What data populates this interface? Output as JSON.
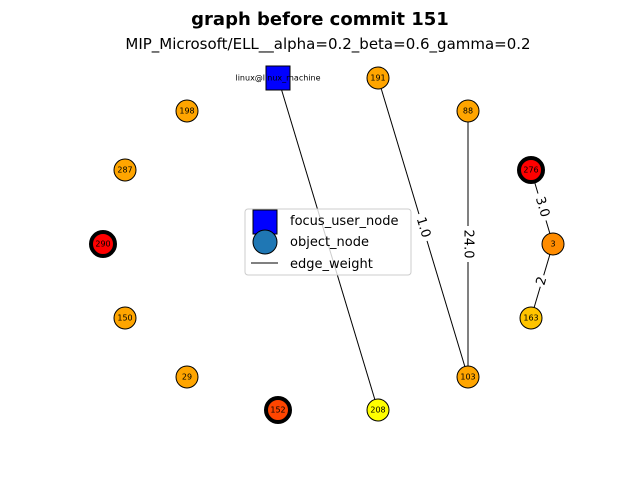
{
  "figure": {
    "title": "graph before commit 151",
    "subtitle": "MIP_Microsoft/ELL__alpha=0.2_beta=0.6_gamma=0.2"
  },
  "colors": {
    "focus_user": "#0000ff",
    "object_default": "#1f77b4",
    "orange": "#ffa500",
    "dark_orange": "#ff8c00",
    "gold": "#ffc400",
    "yellow": "#ffff00",
    "red": "#ff0000",
    "orange_red": "#ff4500",
    "highlight_border": "#000000"
  },
  "nodes": [
    {
      "id": "focus_user",
      "label": "linux@linux_machine",
      "kind": "user",
      "fill": "#0000ff",
      "highlight": false
    },
    {
      "id": "191",
      "label": "191",
      "kind": "object",
      "fill": "#ffa500",
      "highlight": false
    },
    {
      "id": "88",
      "label": "88",
      "kind": "object",
      "fill": "#ffa500",
      "highlight": false
    },
    {
      "id": "198",
      "label": "198",
      "kind": "object",
      "fill": "#ffa500",
      "highlight": false
    },
    {
      "id": "287",
      "label": "287",
      "kind": "object",
      "fill": "#ffa500",
      "highlight": false
    },
    {
      "id": "276",
      "label": "276",
      "kind": "object",
      "fill": "#ff0000",
      "highlight": true
    },
    {
      "id": "290",
      "label": "290",
      "kind": "object",
      "fill": "#ff0000",
      "highlight": true
    },
    {
      "id": "3",
      "label": "3",
      "kind": "object",
      "fill": "#ff8c00",
      "highlight": false
    },
    {
      "id": "150",
      "label": "150",
      "kind": "object",
      "fill": "#ffa500",
      "highlight": false
    },
    {
      "id": "163",
      "label": "163",
      "kind": "object",
      "fill": "#ffc400",
      "highlight": false
    },
    {
      "id": "29",
      "label": "29",
      "kind": "object",
      "fill": "#ffa500",
      "highlight": false
    },
    {
      "id": "103",
      "label": "103",
      "kind": "object",
      "fill": "#ffa500",
      "highlight": false
    },
    {
      "id": "152",
      "label": "152",
      "kind": "object",
      "fill": "#ff4500",
      "highlight": true
    },
    {
      "id": "208",
      "label": "208",
      "kind": "object",
      "fill": "#ffff00",
      "highlight": false
    }
  ],
  "edges": [
    {
      "source": "focus_user",
      "target": "208",
      "weight": null
    },
    {
      "source": "191",
      "target": "103",
      "weight": "1.0"
    },
    {
      "source": "88",
      "target": "103",
      "weight": "24.0"
    },
    {
      "source": "276",
      "target": "3",
      "weight": "3.0"
    },
    {
      "source": "3",
      "target": "163",
      "weight": "2"
    }
  ],
  "legend": {
    "items": [
      {
        "label": "focus_user_node",
        "symbol": "square"
      },
      {
        "label": "object_node",
        "symbol": "circle"
      },
      {
        "label": "edge_weight",
        "symbol": "line"
      }
    ]
  }
}
